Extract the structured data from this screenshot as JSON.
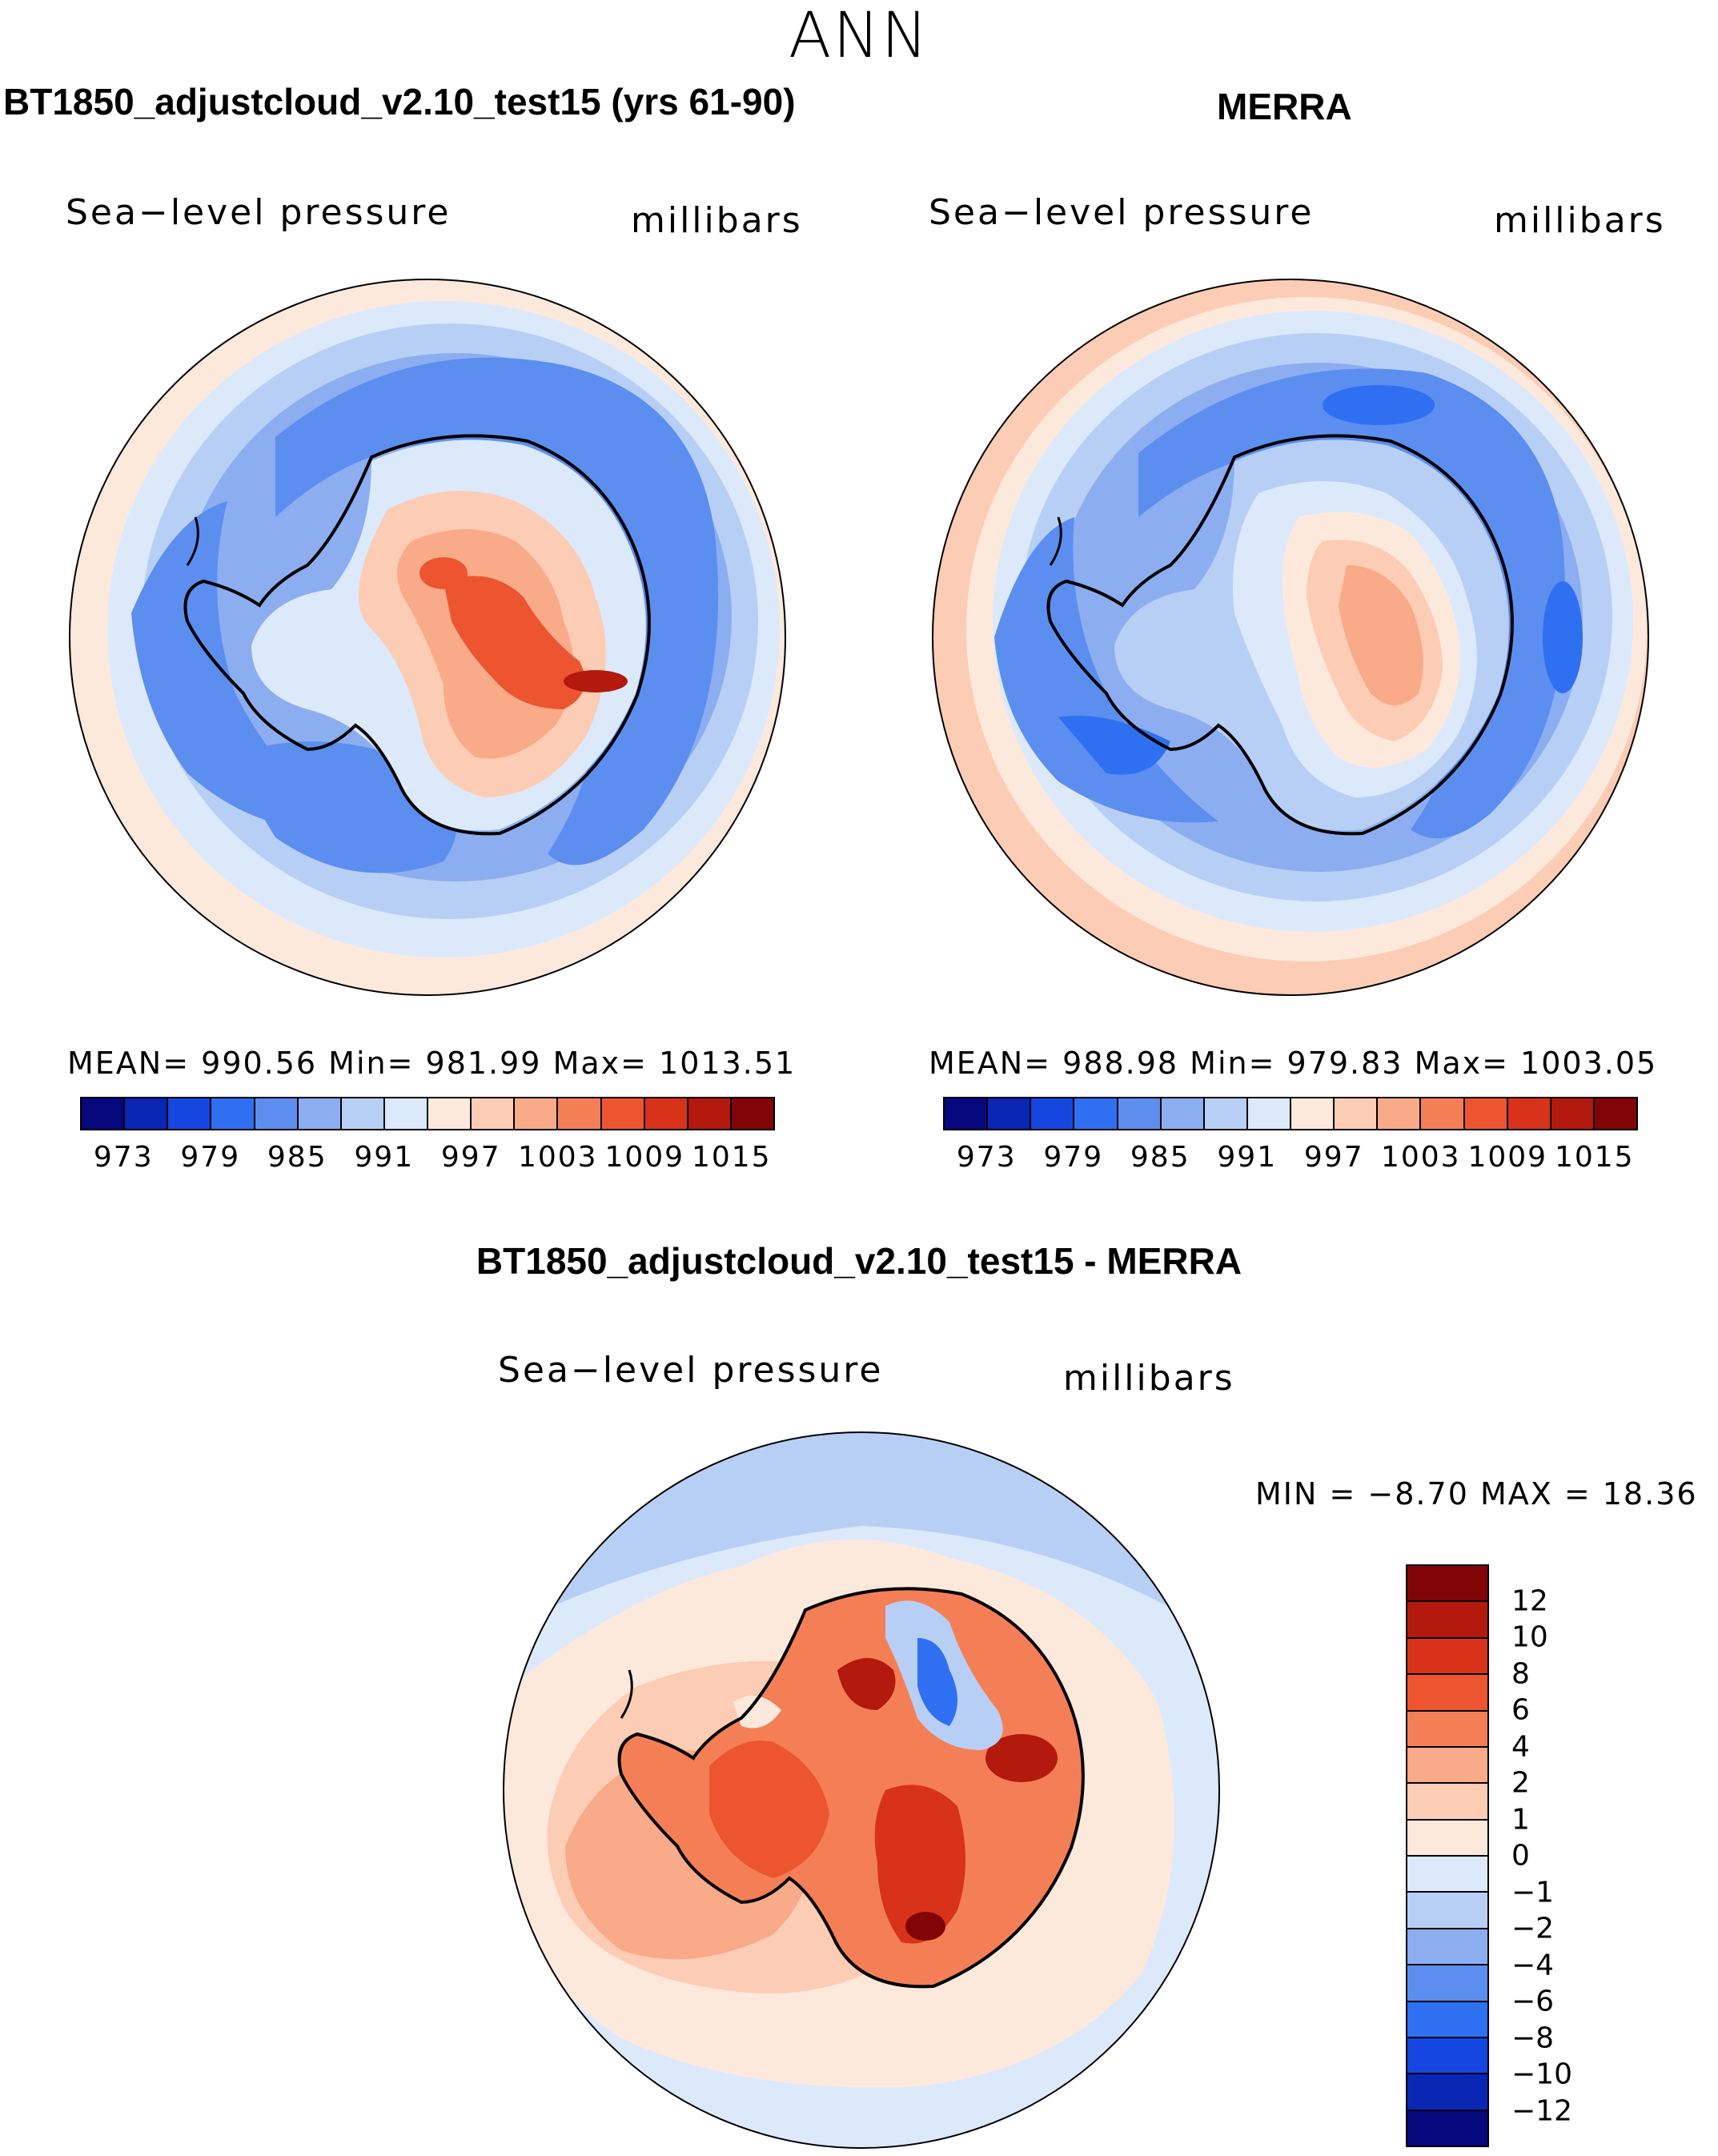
{
  "figure": {
    "season": "ANN"
  },
  "panels": [
    {
      "title": "BT1850_adjustcloud_v2.10_test15 (yrs 61-90)",
      "variable": "Sea−level pressure",
      "units": "millibars",
      "stats": "MEAN=  990.56   Min=  981.99   Max=  1013.51"
    },
    {
      "title": "MERRA",
      "variable": "Sea−level pressure",
      "units": "millibars",
      "stats": "MEAN=  988.98   Min=  979.83   Max=  1003.05"
    }
  ],
  "diff_panel": {
    "title": "BT1850_adjustcloud_v2.10_test15 - MERRA",
    "variable": "Sea−level pressure",
    "units": "millibars",
    "minmax": "MIN =   −8.70  MAX =   18.36"
  },
  "abs_colorbar": {
    "colors": [
      "#08087e",
      "#0a26b4",
      "#1646e0",
      "#2f6ff2",
      "#5c8ef0",
      "#8caef0",
      "#b8cff5",
      "#dce9fb",
      "#fde9dc",
      "#fcccb4",
      "#f9aa88",
      "#f47f57",
      "#ec5530",
      "#d8321a",
      "#b3190c",
      "#810506"
    ],
    "labels": [
      "973",
      "979",
      "985",
      "991",
      "997",
      "1003",
      "1009",
      "1015"
    ]
  },
  "diff_colorbar": {
    "colors": [
      "#810506",
      "#b3190c",
      "#d8321a",
      "#ec5530",
      "#f47f57",
      "#f9aa88",
      "#fcccb4",
      "#fde9dc",
      "#dce9fb",
      "#b8cff5",
      "#8caef0",
      "#5c8ef0",
      "#2f6ff2",
      "#1646e0",
      "#0a26b4",
      "#08087e"
    ],
    "labels": [
      "12",
      "10",
      "8",
      "6",
      "4",
      "2",
      "1",
      "0",
      "−1",
      "−2",
      "−4",
      "−6",
      "−8",
      "−10",
      "−12"
    ]
  }
}
